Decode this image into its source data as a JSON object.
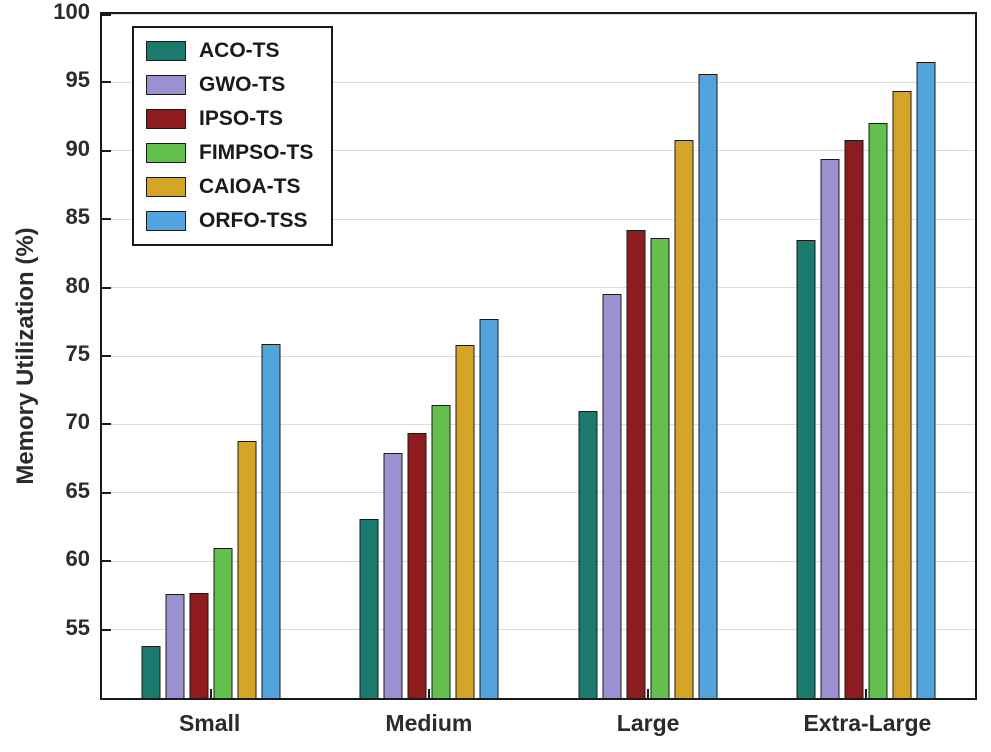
{
  "chart_data": {
    "type": "bar",
    "title": "",
    "xlabel": "",
    "ylabel": "Memory Utilization (%)",
    "ylim": [
      50,
      100
    ],
    "yticks": [
      55,
      60,
      65,
      70,
      75,
      80,
      85,
      90,
      95,
      100
    ],
    "grid": true,
    "legend_position": "top-left",
    "categories": [
      "Small",
      "Medium",
      "Large",
      "Extra-Large"
    ],
    "series": [
      {
        "name": "ACO-TS",
        "color": "#1a7a6d",
        "values": [
          53.8,
          63.1,
          71.0,
          83.5
        ]
      },
      {
        "name": "GWO-TS",
        "color": "#9b90d0",
        "values": [
          57.6,
          67.9,
          79.5,
          89.4
        ]
      },
      {
        "name": "IPSO-TS",
        "color": "#8e1b1e",
        "values": [
          57.7,
          69.4,
          84.2,
          90.8
        ]
      },
      {
        "name": "FIMPSO-TS",
        "color": "#63c04f",
        "values": [
          61.0,
          71.4,
          83.6,
          92.0
        ]
      },
      {
        "name": "CAIOA-TS",
        "color": "#d5a528",
        "values": [
          68.8,
          75.8,
          90.8,
          94.4
        ]
      },
      {
        "name": "ORFO-TSS",
        "color": "#53a4dc",
        "values": [
          75.9,
          77.7,
          95.6,
          96.5
        ]
      }
    ],
    "colors": {
      "bar_edge": "#1a1a1a",
      "axis": "#1a1a1a",
      "grid": "#dcdcdc",
      "background": "#ffffff"
    }
  }
}
